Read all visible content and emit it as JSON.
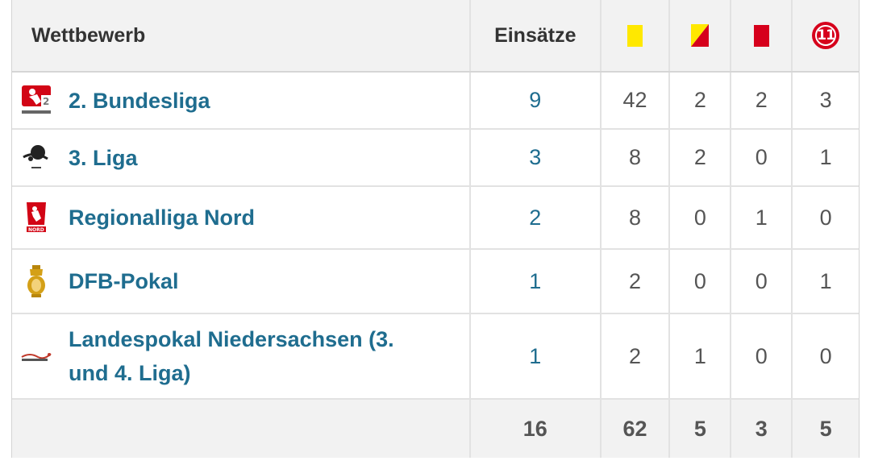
{
  "header": {
    "competition_label": "Wettbewerb",
    "appearances_label": "Einsätze",
    "yellow_card_icon": "yellow-card-icon",
    "yellow_red_card_icon": "yellow-red-card-icon",
    "red_card_icon": "red-card-icon",
    "penalty_icon": "penalty-icon",
    "penalty_glyph": "11"
  },
  "colors": {
    "link": "#1f6d8f",
    "yellow": "#ffe800",
    "red": "#d6001c",
    "header_bg": "#f2f2f2"
  },
  "rows": [
    {
      "competition": "2. Bundesliga",
      "logo": "bundesliga2-logo",
      "appearances": "9",
      "yellow": "42",
      "yellow_red": "2",
      "red": "2",
      "penalties": "3"
    },
    {
      "competition": "3. Liga",
      "logo": "dritte-liga-logo",
      "appearances": "3",
      "yellow": "8",
      "yellow_red": "2",
      "red": "0",
      "penalties": "1"
    },
    {
      "competition": "Regionalliga Nord",
      "logo": "regionalliga-nord-logo",
      "appearances": "2",
      "yellow": "8",
      "yellow_red": "0",
      "red": "1",
      "penalties": "0"
    },
    {
      "competition": "DFB-Pokal",
      "logo": "dfb-pokal-logo",
      "appearances": "1",
      "yellow": "2",
      "yellow_red": "0",
      "red": "0",
      "penalties": "1"
    },
    {
      "competition": "Landespokal Niedersachsen (3. und 4. Liga)",
      "logo": "landespokal-logo",
      "appearances": "1",
      "yellow": "2",
      "yellow_red": "1",
      "red": "0",
      "penalties": "0"
    }
  ],
  "totals": {
    "appearances": "16",
    "yellow": "62",
    "yellow_red": "5",
    "red": "3",
    "penalties": "5"
  }
}
